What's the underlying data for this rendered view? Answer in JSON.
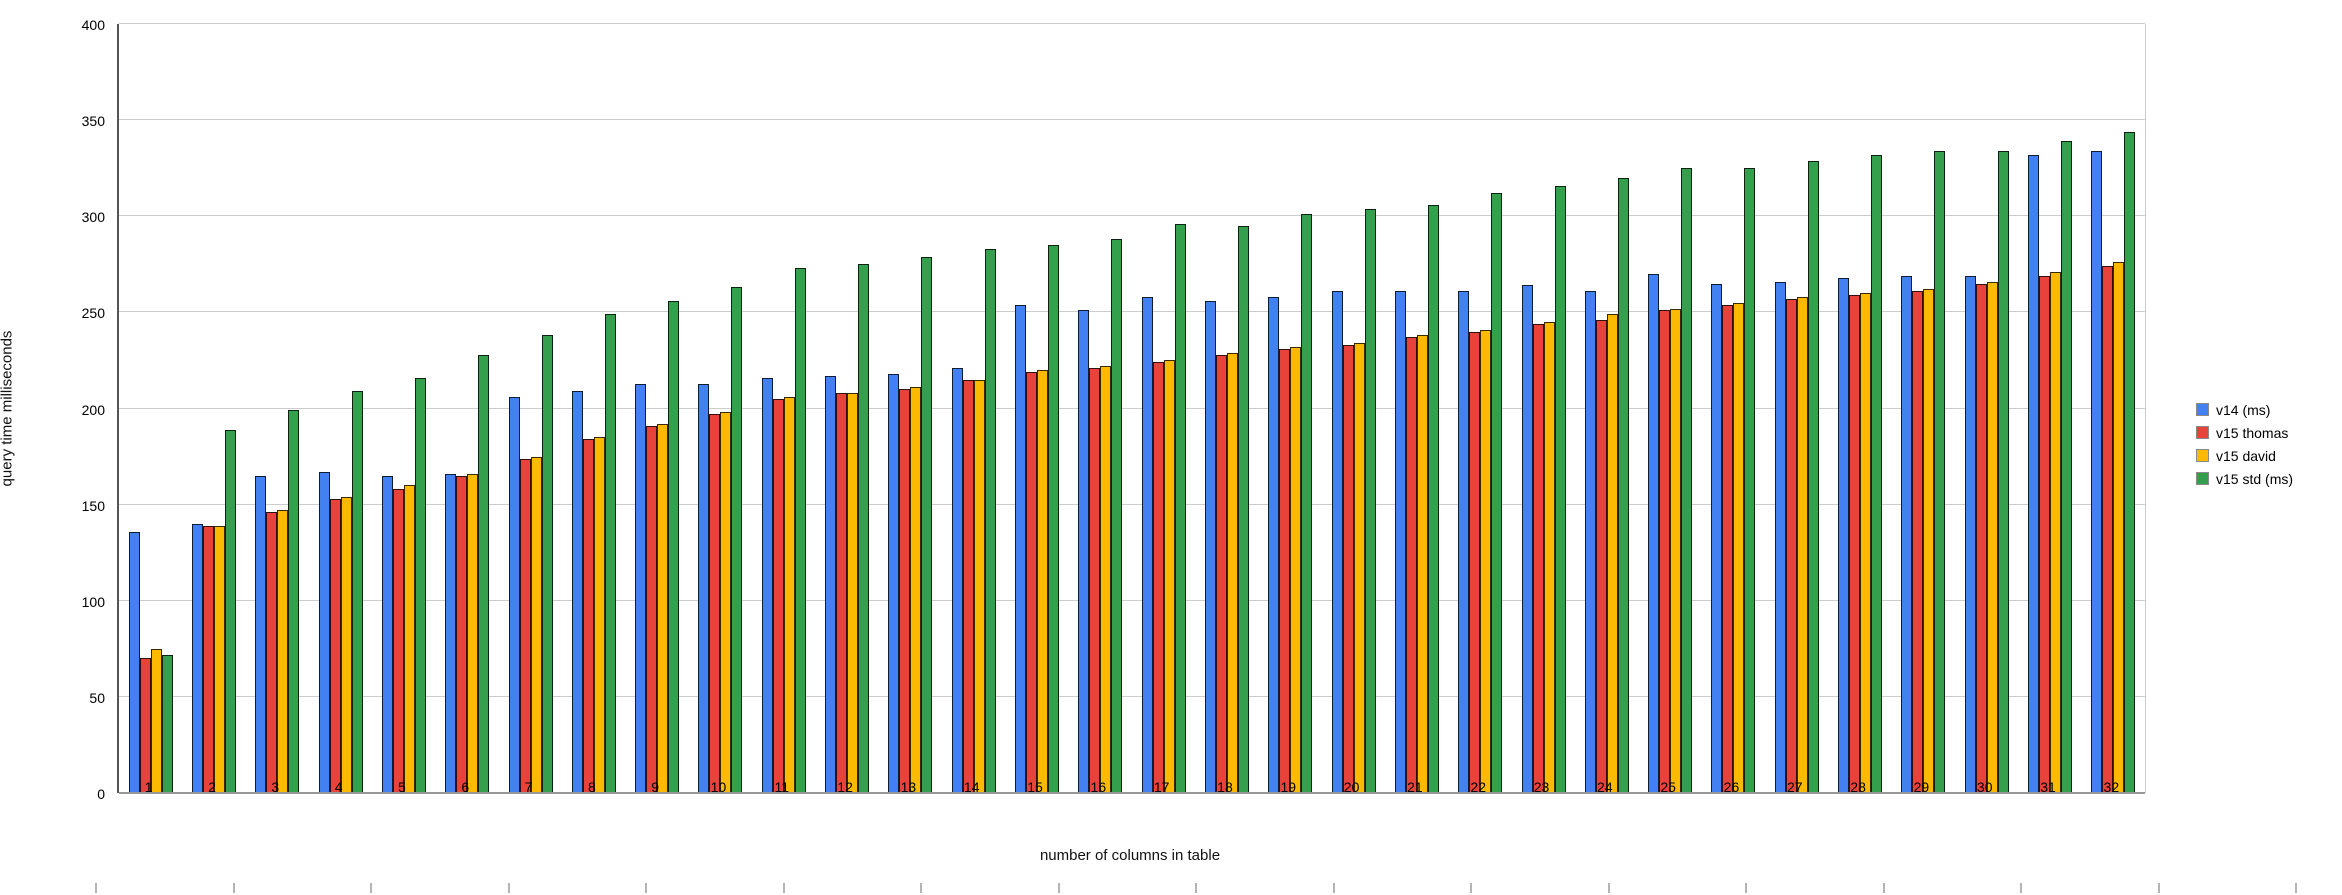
{
  "chart_data": {
    "type": "bar",
    "title": "",
    "xlabel": "number of columns in table",
    "ylabel": "query time milliseconds",
    "ylim": [
      0,
      400
    ],
    "y_ticks": [
      0,
      50,
      100,
      150,
      200,
      250,
      300,
      350,
      400
    ],
    "grid": true,
    "legend_position": "right",
    "categories": [
      "1",
      "2",
      "3",
      "4",
      "5",
      "6",
      "7",
      "8",
      "9",
      "10",
      "11",
      "12",
      "13",
      "14",
      "15",
      "16",
      "17",
      "18",
      "19",
      "20",
      "21",
      "22",
      "23",
      "24",
      "25",
      "26",
      "27",
      "28",
      "29",
      "30",
      "31",
      "32"
    ],
    "series": [
      {
        "name": "v14 (ms)",
        "color": "#4380F2",
        "values": [
          136,
          140,
          165,
          167,
          165,
          166,
          206,
          209,
          213,
          213,
          216,
          217,
          218,
          221,
          254,
          251,
          258,
          256,
          258,
          261,
          261,
          261,
          264,
          261,
          270,
          265,
          266,
          268,
          269,
          269,
          332,
          334
        ]
      },
      {
        "name": "v15 thomas",
        "color": "#E8433A",
        "values": [
          70,
          139,
          146,
          153,
          158,
          165,
          174,
          184,
          191,
          197,
          205,
          208,
          210,
          215,
          219,
          221,
          224,
          228,
          231,
          233,
          237,
          240,
          244,
          246,
          251,
          254,
          257,
          259,
          261,
          265,
          269,
          274
        ]
      },
      {
        "name": "v15 david",
        "color": "#FBBA00",
        "values": [
          75,
          139,
          147,
          154,
          160,
          166,
          175,
          185,
          192,
          198,
          206,
          208,
          211,
          215,
          220,
          222,
          225,
          229,
          232,
          234,
          238,
          241,
          245,
          249,
          252,
          255,
          258,
          260,
          262,
          266,
          271,
          276
        ]
      },
      {
        "name": "v15 std (ms)",
        "color": "#34A04E",
        "values": [
          72,
          189,
          199,
          209,
          216,
          228,
          238,
          249,
          256,
          263,
          273,
          275,
          279,
          283,
          285,
          288,
          296,
          295,
          301,
          304,
          306,
          312,
          316,
          320,
          325,
          325,
          329,
          332,
          334,
          334,
          339,
          344
        ]
      }
    ]
  },
  "style_colors": {
    "gridline": "#cccccc",
    "baseline": "#989898",
    "axis_line": "#555555",
    "ruler_tick": "#b4b4b4",
    "background": "#ffffff",
    "text": "#000000"
  },
  "bottom_ruler": {
    "tick_count": 17,
    "first_x": 95,
    "spacing": 137.5
  }
}
